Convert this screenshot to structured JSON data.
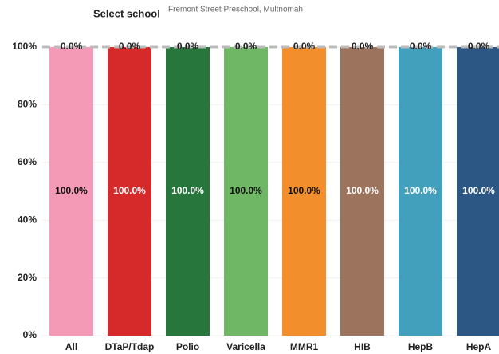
{
  "filter_label": "Select school",
  "filter_value": "Fremont Street Preschool, Multnomah",
  "chart_data": {
    "type": "stacked-bar",
    "categories": [
      "All",
      "DTaP/Tdap",
      "Polio",
      "Varicella",
      "MMR1",
      "HIB",
      "HepB",
      "HepA"
    ],
    "values": [
      100,
      100,
      100,
      100,
      100,
      100,
      100,
      100
    ],
    "value_labels": [
      "100.0%",
      "100.0%",
      "100.0%",
      "100.0%",
      "100.0%",
      "100.0%",
      "100.0%",
      "100.0%"
    ],
    "remainder_values": [
      0,
      0,
      0,
      0,
      0,
      0,
      0,
      0
    ],
    "remainder_labels": [
      "0.0%",
      "0.0%",
      "0.0%",
      "0.0%",
      "0.0%",
      "0.0%",
      "0.0%",
      "0.0%"
    ],
    "colors": [
      "#f49ab7",
      "#d62a2a",
      "#27773c",
      "#6fb765",
      "#f28e2b",
      "#9c735c",
      "#43a0bc",
      "#2c5784"
    ],
    "label_colors": [
      "#111111",
      "#ffffff",
      "#ffffff",
      "#111111",
      "#111111",
      "#ffffff",
      "#ffffff",
      "#ffffff"
    ],
    "ylim": [
      0,
      100
    ],
    "yticks": [
      {
        "value": 0,
        "label": "0%"
      },
      {
        "value": 20,
        "label": "20%"
      },
      {
        "value": 40,
        "label": "40%"
      },
      {
        "value": 60,
        "label": "60%"
      },
      {
        "value": 80,
        "label": "80%"
      },
      {
        "value": 100,
        "label": "100%"
      }
    ],
    "reference_line": 100,
    "grid": true
  }
}
